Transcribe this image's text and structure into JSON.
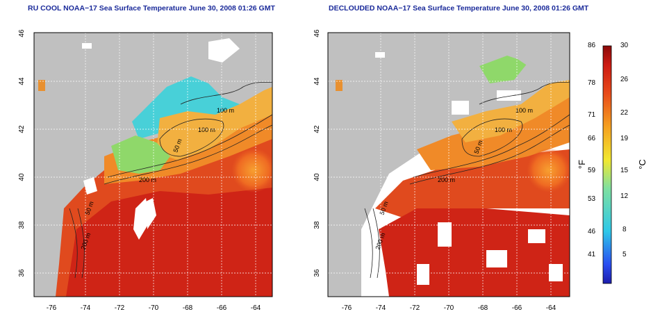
{
  "panels": [
    {
      "title": "RU COOL NOAA−17 Sea Surface Temperature June 30, 2008 01:26 GMT",
      "contour_labels": [
        "100 m",
        "100 m",
        "50 m",
        "200 m",
        "50 m",
        "200 m"
      ]
    },
    {
      "title": "DECLOUDED NOAA−17 Sea Surface Temperature June 30, 2008 01:26 GMT",
      "contour_labels": [
        "100 m",
        "100 m",
        "50 m",
        "200 m",
        "50 m",
        "200 m"
      ]
    }
  ],
  "axes": {
    "x_ticks": [
      "-76",
      "-74",
      "-72",
      "-70",
      "-68",
      "-66",
      "-64"
    ],
    "y_ticks": [
      "36",
      "38",
      "40",
      "42",
      "44",
      "46"
    ]
  },
  "colorbar": {
    "fahrenheit_labels": [
      "86",
      "78",
      "71",
      "66",
      "59",
      "53",
      "46",
      "41"
    ],
    "celsius_labels": [
      "30",
      "26",
      "22",
      "19",
      "15",
      "12",
      "8",
      "5"
    ],
    "unit_f": "°F",
    "unit_c": "°C"
  },
  "colors": {
    "land": "#c0c0c0",
    "cloud": "#ffffff",
    "warm": "#d8281a",
    "cool": "#2ec8e8"
  }
}
